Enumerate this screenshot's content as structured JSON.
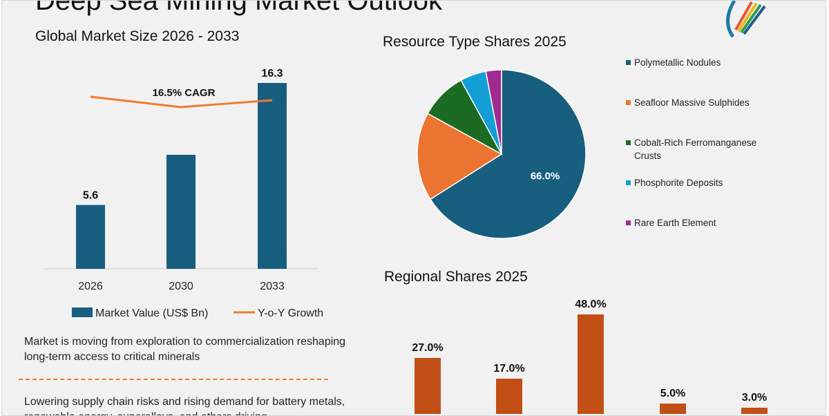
{
  "page": {
    "title": "Deep Sea Mining Market Outlook"
  },
  "market_chart": {
    "title": "Global Market Size 2026 - 2033",
    "cagr_label": "16.5% CAGR"
  },
  "pie_chart": {
    "title": "Resource Type Shares 2025"
  },
  "regional_chart": {
    "title": "Regional Shares 2025"
  },
  "insights": [
    "Market is moving from exploration to commercialization reshaping long-term access to critical minerals",
    "Lowering supply chain risks and rising demand for battery metals, renewable energy, superalloys, and others driving"
  ],
  "colors": {
    "bar": "#175e7f",
    "line": "#ee7b30",
    "regional": "#c24f16",
    "background": "#f1f1f1"
  },
  "chart_data": [
    {
      "type": "bar",
      "title": "Global Market Size 2026 - 2033",
      "categories": [
        "2026",
        "2030",
        "2033"
      ],
      "series": [
        {
          "name": "Market Value (US$ Bn)",
          "type": "bar",
          "values": [
            5.6,
            10.0,
            16.3
          ],
          "data_labels": [
            "5.6",
            "",
            "16.3"
          ]
        },
        {
          "name": "Y-o-Y Growth",
          "type": "line",
          "values": [
            17.5,
            16.0,
            17.0
          ]
        }
      ],
      "annotation": "16.5% CAGR",
      "legend": "bottom",
      "grid": false
    },
    {
      "type": "pie",
      "title": "Resource Type Shares 2025",
      "categories": [
        "Polymetallic Nodules",
        "Seafloor Massive Sulphides",
        "Cobalt-Rich Ferromanganese Crusts",
        "Phosphorite Deposits",
        "Rare Earth Element"
      ],
      "values": [
        66.0,
        17.0,
        9.0,
        5.0,
        3.0
      ],
      "colors": [
        "#175e7f",
        "#ec7431",
        "#1b6b23",
        "#139fd6",
        "#a02b93"
      ],
      "data_labels": [
        "66.0%",
        "",
        "",
        "",
        ""
      ],
      "legend": "right"
    },
    {
      "type": "bar",
      "title": "Regional Shares 2025",
      "values": [
        27.0,
        17.0,
        48.0,
        5.0,
        3.0
      ],
      "data_labels": [
        "27.0%",
        "17.0%",
        "48.0%",
        "5.0%",
        "3.0%"
      ],
      "grid": false
    }
  ]
}
